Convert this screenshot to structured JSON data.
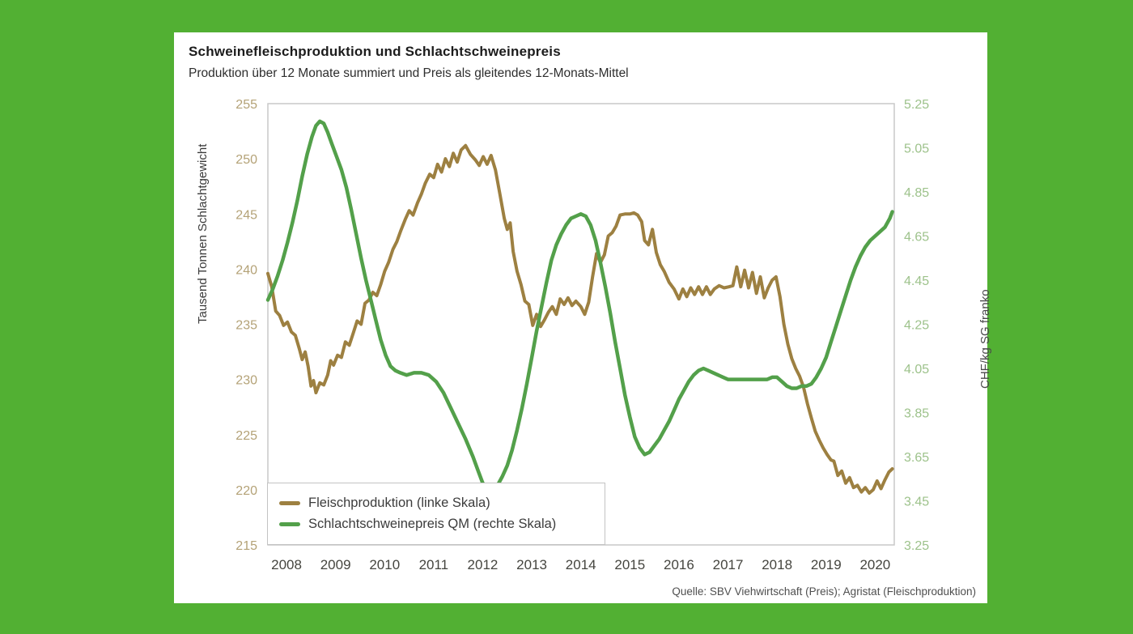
{
  "colors": {
    "frame_green": "#52b033",
    "production_line": "#9d8041",
    "price_line": "#53a04a",
    "left_tick_text": "#b4a277",
    "right_tick_text": "#9dc28b"
  },
  "source_text": "Quelle: SBV Viehwirtschaft (Preis); Agristat (Fleischproduktion)",
  "chart_data": {
    "type": "line",
    "title": "Schweinefleischproduktion und Schlachtschweinepreis",
    "subtitle": "Produktion über 12 Monate summiert und Preis als gleitendes 12-Monats-Mittel",
    "grid": false,
    "legend_position": "bottom-left",
    "xlim": [
      2007.62,
      2020.39
    ],
    "x_ticks": [
      2008,
      2009,
      2010,
      2011,
      2012,
      2013,
      2014,
      2015,
      2016,
      2017,
      2018,
      2019,
      2020
    ],
    "left_axis": {
      "label": "Tausend Tonnen Schlachtgewicht",
      "min": 215,
      "max": 255,
      "step": 5
    },
    "right_axis": {
      "label": "CHF/kg SG franko",
      "min": 3.25,
      "max": 5.25,
      "step": 0.2
    },
    "series": [
      {
        "name": "Fleischproduktion (linke Skala)",
        "axis": "left",
        "color": "#9d8041",
        "points": [
          [
            2007.62,
            239.6
          ],
          [
            2007.7,
            238.4
          ],
          [
            2007.78,
            236.2
          ],
          [
            2007.86,
            235.8
          ],
          [
            2007.94,
            234.9
          ],
          [
            2008.02,
            235.2
          ],
          [
            2008.1,
            234.3
          ],
          [
            2008.18,
            234.0
          ],
          [
            2008.26,
            232.8
          ],
          [
            2008.32,
            231.8
          ],
          [
            2008.38,
            232.5
          ],
          [
            2008.44,
            231.2
          ],
          [
            2008.5,
            229.4
          ],
          [
            2008.55,
            229.9
          ],
          [
            2008.6,
            228.8
          ],
          [
            2008.68,
            229.7
          ],
          [
            2008.76,
            229.5
          ],
          [
            2008.84,
            230.4
          ],
          [
            2008.9,
            231.7
          ],
          [
            2008.96,
            231.3
          ],
          [
            2009.04,
            232.2
          ],
          [
            2009.12,
            232.0
          ],
          [
            2009.2,
            233.4
          ],
          [
            2009.28,
            233.1
          ],
          [
            2009.36,
            234.2
          ],
          [
            2009.44,
            235.3
          ],
          [
            2009.52,
            235.0
          ],
          [
            2009.6,
            236.9
          ],
          [
            2009.68,
            237.2
          ],
          [
            2009.76,
            237.9
          ],
          [
            2009.84,
            237.6
          ],
          [
            2009.92,
            238.6
          ],
          [
            2010.0,
            239.8
          ],
          [
            2010.08,
            240.6
          ],
          [
            2010.17,
            241.8
          ],
          [
            2010.25,
            242.5
          ],
          [
            2010.33,
            243.5
          ],
          [
            2010.42,
            244.5
          ],
          [
            2010.5,
            245.3
          ],
          [
            2010.58,
            244.9
          ],
          [
            2010.67,
            246.0
          ],
          [
            2010.75,
            246.8
          ],
          [
            2010.83,
            247.8
          ],
          [
            2010.92,
            248.6
          ],
          [
            2011.0,
            248.3
          ],
          [
            2011.08,
            249.5
          ],
          [
            2011.16,
            248.8
          ],
          [
            2011.24,
            250.0
          ],
          [
            2011.32,
            249.3
          ],
          [
            2011.4,
            250.5
          ],
          [
            2011.48,
            249.7
          ],
          [
            2011.56,
            250.8
          ],
          [
            2011.65,
            251.2
          ],
          [
            2011.75,
            250.4
          ],
          [
            2011.85,
            249.9
          ],
          [
            2011.93,
            249.4
          ],
          [
            2012.01,
            250.2
          ],
          [
            2012.09,
            249.5
          ],
          [
            2012.17,
            250.3
          ],
          [
            2012.26,
            249.0
          ],
          [
            2012.35,
            246.8
          ],
          [
            2012.44,
            244.6
          ],
          [
            2012.5,
            243.6
          ],
          [
            2012.56,
            244.2
          ],
          [
            2012.62,
            241.6
          ],
          [
            2012.7,
            239.8
          ],
          [
            2012.78,
            238.6
          ],
          [
            2012.86,
            237.1
          ],
          [
            2012.94,
            236.8
          ],
          [
            2013.02,
            234.9
          ],
          [
            2013.1,
            235.9
          ],
          [
            2013.18,
            234.8
          ],
          [
            2013.26,
            235.4
          ],
          [
            2013.34,
            236.1
          ],
          [
            2013.42,
            236.6
          ],
          [
            2013.5,
            235.9
          ],
          [
            2013.58,
            237.3
          ],
          [
            2013.66,
            236.8
          ],
          [
            2013.74,
            237.4
          ],
          [
            2013.82,
            236.7
          ],
          [
            2013.9,
            237.1
          ],
          [
            2014.0,
            236.6
          ],
          [
            2014.08,
            235.9
          ],
          [
            2014.16,
            237.0
          ],
          [
            2014.24,
            239.3
          ],
          [
            2014.32,
            241.4
          ],
          [
            2014.4,
            240.6
          ],
          [
            2014.48,
            241.3
          ],
          [
            2014.56,
            243.0
          ],
          [
            2014.64,
            243.3
          ],
          [
            2014.72,
            243.9
          ],
          [
            2014.8,
            244.9
          ],
          [
            2014.9,
            245.0
          ],
          [
            2015.0,
            245.0
          ],
          [
            2015.08,
            245.1
          ],
          [
            2015.16,
            244.9
          ],
          [
            2015.24,
            244.3
          ],
          [
            2015.3,
            242.6
          ],
          [
            2015.38,
            242.2
          ],
          [
            2015.46,
            243.6
          ],
          [
            2015.54,
            241.5
          ],
          [
            2015.62,
            240.4
          ],
          [
            2015.7,
            239.8
          ],
          [
            2015.8,
            238.8
          ],
          [
            2015.9,
            238.2
          ],
          [
            2016.0,
            237.3
          ],
          [
            2016.08,
            238.2
          ],
          [
            2016.16,
            237.5
          ],
          [
            2016.24,
            238.3
          ],
          [
            2016.32,
            237.7
          ],
          [
            2016.4,
            238.4
          ],
          [
            2016.48,
            237.7
          ],
          [
            2016.56,
            238.4
          ],
          [
            2016.64,
            237.7
          ],
          [
            2016.72,
            238.2
          ],
          [
            2016.82,
            238.5
          ],
          [
            2016.92,
            238.3
          ],
          [
            2017.02,
            238.4
          ],
          [
            2017.1,
            238.5
          ],
          [
            2017.18,
            240.2
          ],
          [
            2017.26,
            238.4
          ],
          [
            2017.34,
            239.9
          ],
          [
            2017.42,
            238.3
          ],
          [
            2017.5,
            239.7
          ],
          [
            2017.58,
            237.8
          ],
          [
            2017.66,
            239.3
          ],
          [
            2017.74,
            237.4
          ],
          [
            2017.82,
            238.3
          ],
          [
            2017.9,
            239.0
          ],
          [
            2017.98,
            239.3
          ],
          [
            2018.06,
            237.5
          ],
          [
            2018.14,
            235.0
          ],
          [
            2018.22,
            233.2
          ],
          [
            2018.3,
            231.9
          ],
          [
            2018.38,
            231.0
          ],
          [
            2018.46,
            230.3
          ],
          [
            2018.54,
            229.3
          ],
          [
            2018.62,
            227.8
          ],
          [
            2018.7,
            226.5
          ],
          [
            2018.78,
            225.3
          ],
          [
            2018.86,
            224.5
          ],
          [
            2018.94,
            223.8
          ],
          [
            2019.02,
            223.2
          ],
          [
            2019.1,
            222.7
          ],
          [
            2019.16,
            222.6
          ],
          [
            2019.24,
            221.3
          ],
          [
            2019.32,
            221.7
          ],
          [
            2019.4,
            220.6
          ],
          [
            2019.48,
            221.1
          ],
          [
            2019.56,
            220.2
          ],
          [
            2019.64,
            220.4
          ],
          [
            2019.72,
            219.8
          ],
          [
            2019.8,
            220.2
          ],
          [
            2019.88,
            219.7
          ],
          [
            2019.96,
            220.0
          ],
          [
            2020.04,
            220.8
          ],
          [
            2020.12,
            220.1
          ],
          [
            2020.2,
            220.9
          ],
          [
            2020.28,
            221.6
          ],
          [
            2020.35,
            221.9
          ]
        ]
      },
      {
        "name": "Schlachtschweinepreis QM (rechte Skala)",
        "axis": "right",
        "color": "#53a04a",
        "points": [
          [
            2007.62,
            4.36
          ],
          [
            2007.72,
            4.41
          ],
          [
            2007.82,
            4.47
          ],
          [
            2007.92,
            4.54
          ],
          [
            2008.02,
            4.62
          ],
          [
            2008.12,
            4.71
          ],
          [
            2008.22,
            4.81
          ],
          [
            2008.32,
            4.92
          ],
          [
            2008.42,
            5.02
          ],
          [
            2008.52,
            5.1
          ],
          [
            2008.6,
            5.15
          ],
          [
            2008.68,
            5.17
          ],
          [
            2008.76,
            5.16
          ],
          [
            2008.84,
            5.12
          ],
          [
            2008.92,
            5.07
          ],
          [
            2009.02,
            5.01
          ],
          [
            2009.12,
            4.95
          ],
          [
            2009.22,
            4.87
          ],
          [
            2009.32,
            4.77
          ],
          [
            2009.42,
            4.66
          ],
          [
            2009.52,
            4.55
          ],
          [
            2009.62,
            4.45
          ],
          [
            2009.72,
            4.36
          ],
          [
            2009.82,
            4.27
          ],
          [
            2009.92,
            4.18
          ],
          [
            2010.02,
            4.11
          ],
          [
            2010.12,
            4.06
          ],
          [
            2010.22,
            4.04
          ],
          [
            2010.32,
            4.03
          ],
          [
            2010.45,
            4.02
          ],
          [
            2010.6,
            4.03
          ],
          [
            2010.75,
            4.03
          ],
          [
            2010.9,
            4.02
          ],
          [
            2011.05,
            3.99
          ],
          [
            2011.2,
            3.94
          ],
          [
            2011.35,
            3.87
          ],
          [
            2011.5,
            3.8
          ],
          [
            2011.65,
            3.73
          ],
          [
            2011.8,
            3.65
          ],
          [
            2011.9,
            3.59
          ],
          [
            2012.0,
            3.53
          ],
          [
            2012.1,
            3.51
          ],
          [
            2012.2,
            3.5
          ],
          [
            2012.3,
            3.52
          ],
          [
            2012.4,
            3.56
          ],
          [
            2012.5,
            3.61
          ],
          [
            2012.6,
            3.68
          ],
          [
            2012.7,
            3.77
          ],
          [
            2012.8,
            3.87
          ],
          [
            2012.9,
            3.98
          ],
          [
            2013.0,
            4.1
          ],
          [
            2013.1,
            4.22
          ],
          [
            2013.2,
            4.33
          ],
          [
            2013.3,
            4.44
          ],
          [
            2013.4,
            4.54
          ],
          [
            2013.5,
            4.61
          ],
          [
            2013.6,
            4.66
          ],
          [
            2013.7,
            4.7
          ],
          [
            2013.8,
            4.73
          ],
          [
            2013.9,
            4.74
          ],
          [
            2014.0,
            4.75
          ],
          [
            2014.1,
            4.74
          ],
          [
            2014.2,
            4.7
          ],
          [
            2014.3,
            4.63
          ],
          [
            2014.4,
            4.53
          ],
          [
            2014.5,
            4.42
          ],
          [
            2014.6,
            4.3
          ],
          [
            2014.7,
            4.17
          ],
          [
            2014.8,
            4.05
          ],
          [
            2014.9,
            3.93
          ],
          [
            2015.0,
            3.83
          ],
          [
            2015.1,
            3.74
          ],
          [
            2015.2,
            3.69
          ],
          [
            2015.3,
            3.66
          ],
          [
            2015.4,
            3.67
          ],
          [
            2015.5,
            3.7
          ],
          [
            2015.6,
            3.73
          ],
          [
            2015.7,
            3.77
          ],
          [
            2015.8,
            3.81
          ],
          [
            2015.9,
            3.86
          ],
          [
            2016.0,
            3.91
          ],
          [
            2016.1,
            3.95
          ],
          [
            2016.2,
            3.99
          ],
          [
            2016.3,
            4.02
          ],
          [
            2016.4,
            4.04
          ],
          [
            2016.5,
            4.05
          ],
          [
            2016.6,
            4.04
          ],
          [
            2016.7,
            4.03
          ],
          [
            2016.8,
            4.02
          ],
          [
            2016.9,
            4.01
          ],
          [
            2017.0,
            4.0
          ],
          [
            2017.2,
            4.0
          ],
          [
            2017.4,
            4.0
          ],
          [
            2017.6,
            4.0
          ],
          [
            2017.8,
            4.0
          ],
          [
            2017.9,
            4.01
          ],
          [
            2018.0,
            4.01
          ],
          [
            2018.1,
            3.99
          ],
          [
            2018.2,
            3.97
          ],
          [
            2018.3,
            3.96
          ],
          [
            2018.4,
            3.96
          ],
          [
            2018.5,
            3.97
          ],
          [
            2018.6,
            3.97
          ],
          [
            2018.7,
            3.98
          ],
          [
            2018.8,
            4.01
          ],
          [
            2018.9,
            4.05
          ],
          [
            2019.0,
            4.1
          ],
          [
            2019.1,
            4.17
          ],
          [
            2019.2,
            4.24
          ],
          [
            2019.3,
            4.31
          ],
          [
            2019.4,
            4.38
          ],
          [
            2019.5,
            4.45
          ],
          [
            2019.6,
            4.51
          ],
          [
            2019.7,
            4.56
          ],
          [
            2019.8,
            4.6
          ],
          [
            2019.9,
            4.63
          ],
          [
            2020.0,
            4.65
          ],
          [
            2020.1,
            4.67
          ],
          [
            2020.2,
            4.69
          ],
          [
            2020.3,
            4.73
          ],
          [
            2020.35,
            4.76
          ]
        ]
      }
    ]
  }
}
